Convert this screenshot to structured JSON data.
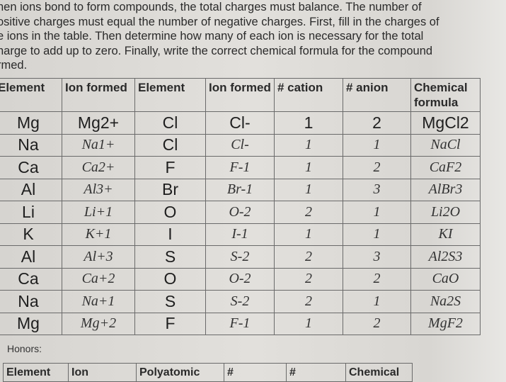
{
  "intro_lines": [
    "hen ions bond to form compounds, the total charges must balance.  The number of",
    "ositive charges must equal the number of negative charges.  First, fill in the charges of",
    "e ions in the table.  Then determine how many of each ion is necessary for the total",
    "harge to add up to zero.  Finally, write the correct chemical formula for the compound",
    "rmed."
  ],
  "table": {
    "headers": [
      "Element",
      "Ion formed",
      "Element",
      "Ion formed",
      "# cation",
      "# anion",
      "Chemical formula"
    ],
    "rows": [
      [
        "Mg",
        "Mg2+",
        "Cl",
        "Cl-",
        "1",
        "2",
        "MgCl2"
      ],
      [
        "Na",
        "Na1+",
        "Cl",
        "Cl-",
        "1",
        "1",
        "NaCl"
      ],
      [
        "Ca",
        "Ca2+",
        "F",
        "F-1",
        "1",
        "2",
        "CaF2"
      ],
      [
        "Al",
        "Al3+",
        "Br",
        "Br-1",
        "1",
        "3",
        "AlBr3"
      ],
      [
        "Li",
        "Li+1",
        "O",
        "O-2",
        "2",
        "1",
        "Li2O"
      ],
      [
        "K",
        "K+1",
        "I",
        "I-1",
        "1",
        "1",
        "KI"
      ],
      [
        "Al",
        "Al+3",
        "S",
        "S-2",
        "2",
        "3",
        "Al2S3"
      ],
      [
        "Ca",
        "Ca+2",
        "O",
        "O-2",
        "2",
        "2",
        "CaO"
      ],
      [
        "Na",
        "Na+1",
        "S",
        "S-2",
        "2",
        "1",
        "Na2S"
      ],
      [
        "Mg",
        "Mg+2",
        "F",
        "F-1",
        "1",
        "2",
        "MgF2"
      ]
    ]
  },
  "honors_label": "Honors:",
  "honors_table": {
    "headers": [
      "Element",
      "Ion",
      "Polyatomic",
      "#",
      "#",
      "Chemical"
    ]
  }
}
